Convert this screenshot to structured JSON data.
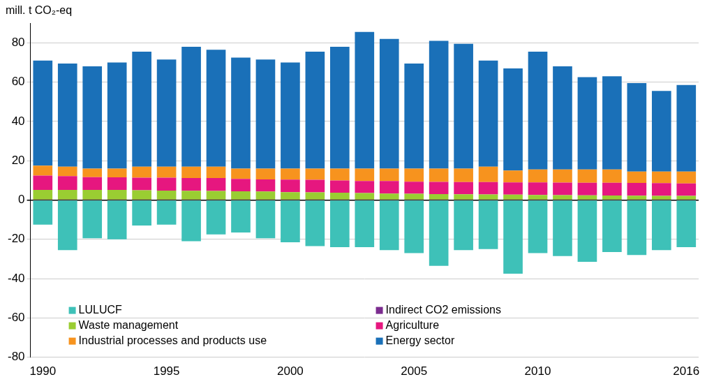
{
  "chart_data": {
    "type": "bar",
    "ylabel": "mill. t CO₂-eq",
    "stacked": true,
    "grid": true,
    "legend": "bottom left",
    "categories": [
      "1990",
      null,
      null,
      null,
      null,
      "1995",
      null,
      null,
      null,
      null,
      "2000",
      null,
      null,
      null,
      null,
      "2005",
      null,
      null,
      null,
      null,
      "2010",
      null,
      null,
      null,
      null,
      null,
      "2016"
    ],
    "ylim": [
      -80,
      90
    ],
    "yticks": [
      -80,
      -60,
      -40,
      -20,
      0,
      20,
      40,
      60,
      80
    ],
    "series": [
      {
        "name": "LULUCF",
        "color": "#3ec1b8",
        "values": [
          -12.5,
          -25.5,
          -19.5,
          -20,
          -13,
          -12.5,
          -21,
          -17.5,
          -16.5,
          -19.5,
          -21.5,
          -23.5,
          -24,
          -24,
          -25.5,
          -27,
          -33.5,
          -25.5,
          -25,
          -37.5,
          -27,
          -28.5,
          -31.5,
          -26.5,
          -28,
          -25.5,
          -24
        ]
      },
      {
        "name": "Indirect CO2 emissions",
        "color": "#7b2c8f",
        "values": [
          0.1,
          0.1,
          0.1,
          0.1,
          0.1,
          0.1,
          0.1,
          0.1,
          0.1,
          0.1,
          0.1,
          0.1,
          0.1,
          0.1,
          0.1,
          0.1,
          0.1,
          0.1,
          0.1,
          0.1,
          0.1,
          0.1,
          0.1,
          0.1,
          0.1,
          0.1,
          0.1
        ]
      },
      {
        "name": "Waste management",
        "color": "#9acd32",
        "values": [
          5.0,
          5.0,
          5.0,
          5.0,
          4.9,
          4.7,
          4.6,
          4.5,
          4.3,
          4.2,
          3.9,
          3.8,
          3.6,
          3.4,
          3.2,
          3.1,
          2.9,
          2.8,
          2.7,
          2.6,
          2.5,
          2.4,
          2.3,
          2.2,
          2.1,
          2.0,
          2.0
        ]
      },
      {
        "name": "Agriculture",
        "color": "#e6177f",
        "values": [
          7.3,
          7.1,
          6.5,
          6.4,
          6.4,
          6.6,
          6.5,
          6.6,
          6.3,
          6.2,
          6.4,
          6.4,
          6.2,
          6.2,
          6.4,
          6.1,
          6.2,
          6.2,
          6.3,
          6.3,
          6.4,
          6.4,
          6.4,
          6.5,
          6.5,
          6.5,
          6.3
        ]
      },
      {
        "name": "Industrial processes and products use",
        "color": "#f7931e",
        "values": [
          5.1,
          4.8,
          4.4,
          4.5,
          5.6,
          5.6,
          5.8,
          5.8,
          5.3,
          5.5,
          5.6,
          5.7,
          6.1,
          6.3,
          6.3,
          6.7,
          6.8,
          6.9,
          7.9,
          6.0,
          6.5,
          6.6,
          6.7,
          6.7,
          5.8,
          5.9,
          6.1
        ]
      },
      {
        "name": "Energy sector",
        "color": "#1a70b8",
        "values": [
          53.5,
          52.5,
          52,
          54,
          58.5,
          54.5,
          61,
          59.5,
          56.5,
          55.5,
          54,
          59.5,
          62,
          69.5,
          66,
          53.5,
          65,
          63.5,
          54,
          52,
          60,
          52.5,
          47,
          47.5,
          45,
          41,
          44
        ]
      }
    ]
  }
}
